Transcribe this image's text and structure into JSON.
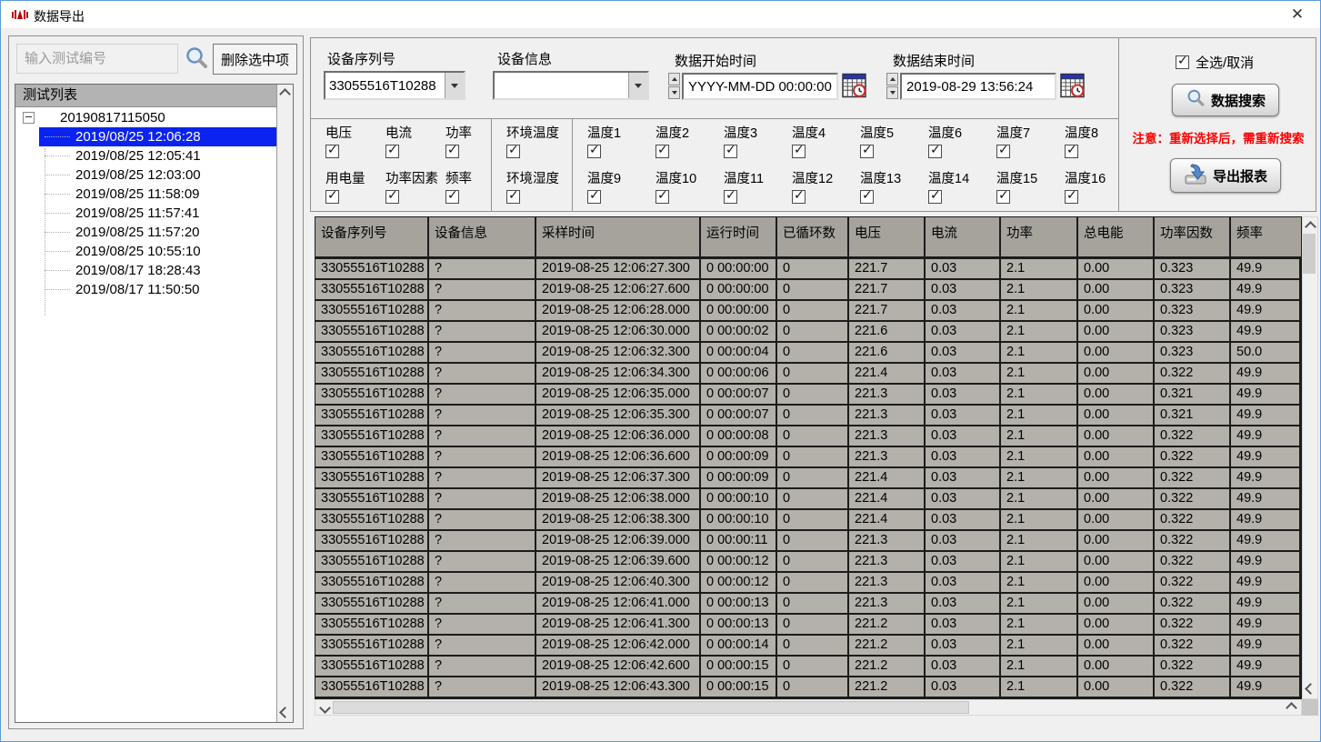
{
  "window": {
    "title": "数据导出",
    "close_glyph": "✕"
  },
  "colors": {
    "tree_selection": "#0a23ee",
    "note_red": "#ff0000",
    "app_icon_red": "#c00000",
    "table_header_gray": "#a6a39d",
    "table_cell_gray": "#b4b1aa"
  },
  "left_panel": {
    "search_placeholder": "输入测试编号",
    "delete_button": "删除选中项",
    "tree_header": "测试列表",
    "tree": {
      "root": "20190817115050",
      "items": [
        {
          "label": "2019/08/25 12:06:28",
          "selected": true
        },
        {
          "label": "2019/08/25 12:05:41",
          "selected": false
        },
        {
          "label": "2019/08/25 12:03:00",
          "selected": false
        },
        {
          "label": "2019/08/25 11:58:09",
          "selected": false
        },
        {
          "label": "2019/08/25 11:57:41",
          "selected": false
        },
        {
          "label": "2019/08/25 11:57:20",
          "selected": false
        },
        {
          "label": "2019/08/25 10:55:10",
          "selected": false
        },
        {
          "label": "2019/08/17 18:28:43",
          "selected": false
        },
        {
          "label": "2019/08/17 11:50:50",
          "selected": false
        }
      ]
    }
  },
  "form": {
    "serial_label": "设备序列号",
    "serial_value": "33055516T10288",
    "info_label": "设备信息",
    "info_value": "",
    "start_label": "数据开始时间",
    "start_value": "YYYY-MM-DD 00:00:00",
    "end_label": "数据结束时间",
    "end_value": "2019-08-29 13:56:24"
  },
  "channels": {
    "all_checked": true,
    "groups": [
      {
        "top": [
          "电压",
          "电流",
          "功率"
        ],
        "bottom": [
          "用电量",
          "功率因素",
          "频率"
        ]
      },
      {
        "top": [
          "环境温度"
        ],
        "bottom": [
          "环境湿度"
        ]
      },
      {
        "top": [
          "温度1",
          "温度2",
          "温度3",
          "温度4",
          "温度5",
          "温度6",
          "温度7",
          "温度8"
        ],
        "bottom": [
          "温度9",
          "温度10",
          "温度11",
          "温度12",
          "温度13",
          "温度14",
          "温度15",
          "温度16"
        ]
      }
    ]
  },
  "actions": {
    "select_all_label": "全选/取消",
    "select_all_checked": true,
    "search_button": "数据搜索",
    "note": "注意：重新选择后，需重新搜索",
    "export_button": "导出报表"
  },
  "table": {
    "headers": [
      "设备序列号",
      "设备信息",
      "采样时间",
      "运行时间",
      "已循环数",
      "电压",
      "电流",
      "功率",
      "总电能",
      "功率因数",
      "频率"
    ],
    "rows": [
      [
        "33055516T10288",
        "?",
        "2019-08-25 12:06:27.300",
        "0 00:00:00",
        "0",
        "221.7",
        "0.03",
        "2.1",
        "0.00",
        "0.323",
        "49.9"
      ],
      [
        "33055516T10288",
        "?",
        "2019-08-25 12:06:27.600",
        "0 00:00:00",
        "0",
        "221.7",
        "0.03",
        "2.1",
        "0.00",
        "0.323",
        "49.9"
      ],
      [
        "33055516T10288",
        "?",
        "2019-08-25 12:06:28.000",
        "0 00:00:00",
        "0",
        "221.7",
        "0.03",
        "2.1",
        "0.00",
        "0.323",
        "49.9"
      ],
      [
        "33055516T10288",
        "?",
        "2019-08-25 12:06:30.000",
        "0 00:00:02",
        "0",
        "221.6",
        "0.03",
        "2.1",
        "0.00",
        "0.323",
        "49.9"
      ],
      [
        "33055516T10288",
        "?",
        "2019-08-25 12:06:32.300",
        "0 00:00:04",
        "0",
        "221.6",
        "0.03",
        "2.1",
        "0.00",
        "0.323",
        "50.0"
      ],
      [
        "33055516T10288",
        "?",
        "2019-08-25 12:06:34.300",
        "0 00:00:06",
        "0",
        "221.4",
        "0.03",
        "2.1",
        "0.00",
        "0.322",
        "49.9"
      ],
      [
        "33055516T10288",
        "?",
        "2019-08-25 12:06:35.000",
        "0 00:00:07",
        "0",
        "221.3",
        "0.03",
        "2.1",
        "0.00",
        "0.321",
        "49.9"
      ],
      [
        "33055516T10288",
        "?",
        "2019-08-25 12:06:35.300",
        "0 00:00:07",
        "0",
        "221.3",
        "0.03",
        "2.1",
        "0.00",
        "0.321",
        "49.9"
      ],
      [
        "33055516T10288",
        "?",
        "2019-08-25 12:06:36.000",
        "0 00:00:08",
        "0",
        "221.3",
        "0.03",
        "2.1",
        "0.00",
        "0.322",
        "49.9"
      ],
      [
        "33055516T10288",
        "?",
        "2019-08-25 12:06:36.600",
        "0 00:00:09",
        "0",
        "221.3",
        "0.03",
        "2.1",
        "0.00",
        "0.322",
        "49.9"
      ],
      [
        "33055516T10288",
        "?",
        "2019-08-25 12:06:37.300",
        "0 00:00:09",
        "0",
        "221.4",
        "0.03",
        "2.1",
        "0.00",
        "0.322",
        "49.9"
      ],
      [
        "33055516T10288",
        "?",
        "2019-08-25 12:06:38.000",
        "0 00:00:10",
        "0",
        "221.4",
        "0.03",
        "2.1",
        "0.00",
        "0.322",
        "49.9"
      ],
      [
        "33055516T10288",
        "?",
        "2019-08-25 12:06:38.300",
        "0 00:00:10",
        "0",
        "221.4",
        "0.03",
        "2.1",
        "0.00",
        "0.322",
        "49.9"
      ],
      [
        "33055516T10288",
        "?",
        "2019-08-25 12:06:39.000",
        "0 00:00:11",
        "0",
        "221.3",
        "0.03",
        "2.1",
        "0.00",
        "0.322",
        "49.9"
      ],
      [
        "33055516T10288",
        "?",
        "2019-08-25 12:06:39.600",
        "0 00:00:12",
        "0",
        "221.3",
        "0.03",
        "2.1",
        "0.00",
        "0.322",
        "49.9"
      ],
      [
        "33055516T10288",
        "?",
        "2019-08-25 12:06:40.300",
        "0 00:00:12",
        "0",
        "221.3",
        "0.03",
        "2.1",
        "0.00",
        "0.322",
        "49.9"
      ],
      [
        "33055516T10288",
        "?",
        "2019-08-25 12:06:41.000",
        "0 00:00:13",
        "0",
        "221.3",
        "0.03",
        "2.1",
        "0.00",
        "0.322",
        "49.9"
      ],
      [
        "33055516T10288",
        "?",
        "2019-08-25 12:06:41.300",
        "0 00:00:13",
        "0",
        "221.2",
        "0.03",
        "2.1",
        "0.00",
        "0.322",
        "49.9"
      ],
      [
        "33055516T10288",
        "?",
        "2019-08-25 12:06:42.000",
        "0 00:00:14",
        "0",
        "221.2",
        "0.03",
        "2.1",
        "0.00",
        "0.322",
        "49.9"
      ],
      [
        "33055516T10288",
        "?",
        "2019-08-25 12:06:42.600",
        "0 00:00:15",
        "0",
        "221.2",
        "0.03",
        "2.1",
        "0.00",
        "0.322",
        "49.9"
      ],
      [
        "33055516T10288",
        "?",
        "2019-08-25 12:06:43.300",
        "0 00:00:15",
        "0",
        "221.2",
        "0.03",
        "2.1",
        "0.00",
        "0.322",
        "49.9"
      ]
    ]
  }
}
